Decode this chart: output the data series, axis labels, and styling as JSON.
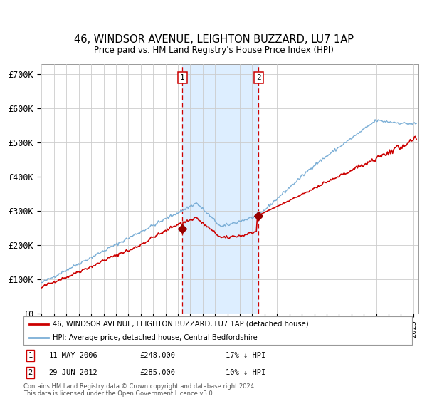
{
  "title1": "46, WINDSOR AVENUE, LEIGHTON BUZZARD, LU7 1AP",
  "title2": "Price paid vs. HM Land Registry's House Price Index (HPI)",
  "ylabel_ticks": [
    "£0",
    "£100K",
    "£200K",
    "£300K",
    "£400K",
    "£500K",
    "£600K",
    "£700K"
  ],
  "ytick_vals": [
    0,
    100000,
    200000,
    300000,
    400000,
    500000,
    600000,
    700000
  ],
  "ylim": [
    0,
    730000
  ],
  "sale1_price": 248000,
  "sale2_price": 285000,
  "legend1": "46, WINDSOR AVENUE, LEIGHTON BUZZARD, LU7 1AP (detached house)",
  "legend2": "HPI: Average price, detached house, Central Bedfordshire",
  "footer": "Contains HM Land Registry data © Crown copyright and database right 2024.\nThis data is licensed under the Open Government Licence v3.0.",
  "hpi_color": "#7aaed6",
  "price_color": "#cc0000",
  "bg_color": "#ffffff",
  "grid_color": "#cccccc",
  "shade_color": "#ddeeff",
  "marker_color": "#990000"
}
